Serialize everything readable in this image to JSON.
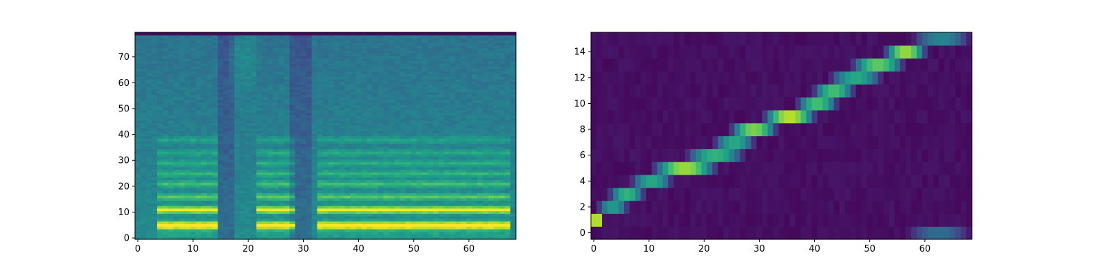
{
  "chart_data": [
    {
      "type": "heatmap",
      "title": "",
      "xlabel": "",
      "ylabel": "",
      "colormap": "viridis",
      "xlim": [
        -0.5,
        68.5
      ],
      "ylim": [
        -0.5,
        79.5
      ],
      "xticks": [
        0,
        10,
        20,
        30,
        40,
        50,
        60
      ],
      "yticks": [
        0,
        10,
        20,
        30,
        40,
        50,
        60,
        70
      ],
      "n_cols": 69,
      "n_rows": 80,
      "description_values": "mel-spectrogram: low rows (4-6, 10-12) bright yellow during voiced segments x=4-14, 22-28, 33-67; dark vertical bands near x=15-16, 28-30",
      "voiced_segments": [
        [
          4,
          14
        ],
        [
          22,
          28
        ],
        [
          33,
          67
        ]
      ],
      "silent_columns": [
        [
          15,
          17
        ],
        [
          28,
          31
        ]
      ],
      "harmonic_rows": [
        5,
        11,
        16,
        21,
        25,
        29,
        33,
        38
      ]
    },
    {
      "type": "heatmap",
      "title": "",
      "xlabel": "",
      "ylabel": "",
      "colormap": "viridis",
      "xlim": [
        -0.5,
        68.5
      ],
      "ylim": [
        -0.5,
        15.5
      ],
      "xticks": [
        0,
        10,
        20,
        30,
        40,
        50,
        60
      ],
      "yticks": [
        0,
        2,
        4,
        6,
        8,
        10,
        12,
        14
      ],
      "n_cols": 69,
      "n_rows": 16,
      "alignment_path": [
        {
          "row": 1,
          "x_start": 0,
          "x_end": 1,
          "peak": 1.0
        },
        {
          "row": 2,
          "x_start": 1,
          "x_end": 6,
          "peak": 0.55
        },
        {
          "row": 3,
          "x_start": 3,
          "x_end": 9,
          "peak": 0.65
        },
        {
          "row": 4,
          "x_start": 7,
          "x_end": 14,
          "peak": 0.6
        },
        {
          "row": 5,
          "x_start": 11,
          "x_end": 22,
          "peak": 0.85
        },
        {
          "row": 6,
          "x_start": 17,
          "x_end": 27,
          "peak": 0.65
        },
        {
          "row": 7,
          "x_start": 22,
          "x_end": 29,
          "peak": 0.6
        },
        {
          "row": 8,
          "x_start": 25,
          "x_end": 33,
          "peak": 0.8
        },
        {
          "row": 9,
          "x_start": 31,
          "x_end": 40,
          "peak": 0.9
        },
        {
          "row": 10,
          "x_start": 37,
          "x_end": 44,
          "peak": 0.7
        },
        {
          "row": 11,
          "x_start": 40,
          "x_end": 47,
          "peak": 0.7
        },
        {
          "row": 12,
          "x_start": 43,
          "x_end": 52,
          "peak": 0.6
        },
        {
          "row": 13,
          "x_start": 47,
          "x_end": 56,
          "peak": 0.75
        },
        {
          "row": 14,
          "x_start": 53,
          "x_end": 60,
          "peak": 0.85
        },
        {
          "row": 15,
          "x_start": 58,
          "x_end": 68,
          "peak": 0.45
        },
        {
          "row": 0,
          "x_start": 57,
          "x_end": 68,
          "peak": 0.35
        }
      ]
    }
  ]
}
